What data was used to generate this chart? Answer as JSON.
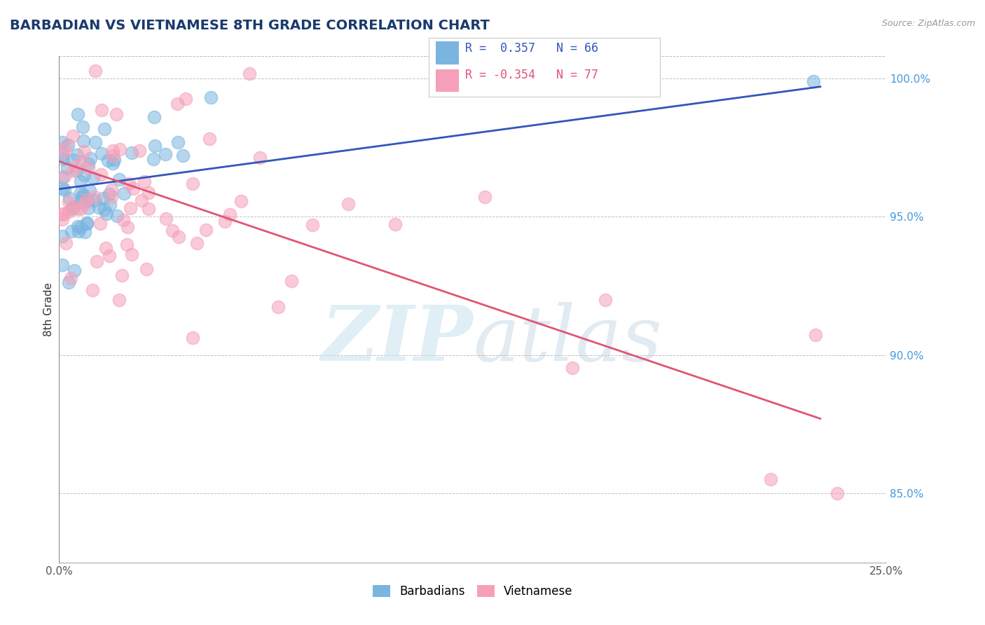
{
  "title": "BARBADIAN VS VIETNAMESE 8TH GRADE CORRELATION CHART",
  "source": "Source: ZipAtlas.com",
  "xlabel_barbadian": "Barbadians",
  "xlabel_vietnamese": "Vietnamese",
  "ylabel": "8th Grade",
  "xlim": [
    0.0,
    0.25
  ],
  "ylim": [
    0.825,
    1.008
  ],
  "xticks": [
    0.0,
    0.25
  ],
  "xtick_labels": [
    "0.0%",
    "25.0%"
  ],
  "yticks": [
    0.85,
    0.9,
    0.95,
    1.0
  ],
  "ytick_labels": [
    "85.0%",
    "90.0%",
    "95.0%",
    "100.0%"
  ],
  "barbadian_color": "#7ab5e0",
  "vietnamese_color": "#f5a0b8",
  "barbadian_trend_color": "#3355bb",
  "vietnamese_trend_color": "#e05575",
  "R_barbadian": 0.357,
  "N_barbadian": 66,
  "R_vietnamese": -0.354,
  "N_vietnamese": 77,
  "watermark_zip": "ZIP",
  "watermark_atlas": "atlas",
  "title_color": "#1a3a6e",
  "title_fontsize": 14,
  "source_color": "#999999",
  "legend_R1_color": "#3355bb",
  "legend_R2_color": "#e05575",
  "legend_N_color": "#3355bb",
  "barb_trend_x0": 0.0,
  "barb_trend_y0": 0.96,
  "barb_trend_x1": 0.23,
  "barb_trend_y1": 0.997,
  "viet_trend_x0": 0.0,
  "viet_trend_y0": 0.97,
  "viet_trend_x1": 0.23,
  "viet_trend_y1": 0.877
}
